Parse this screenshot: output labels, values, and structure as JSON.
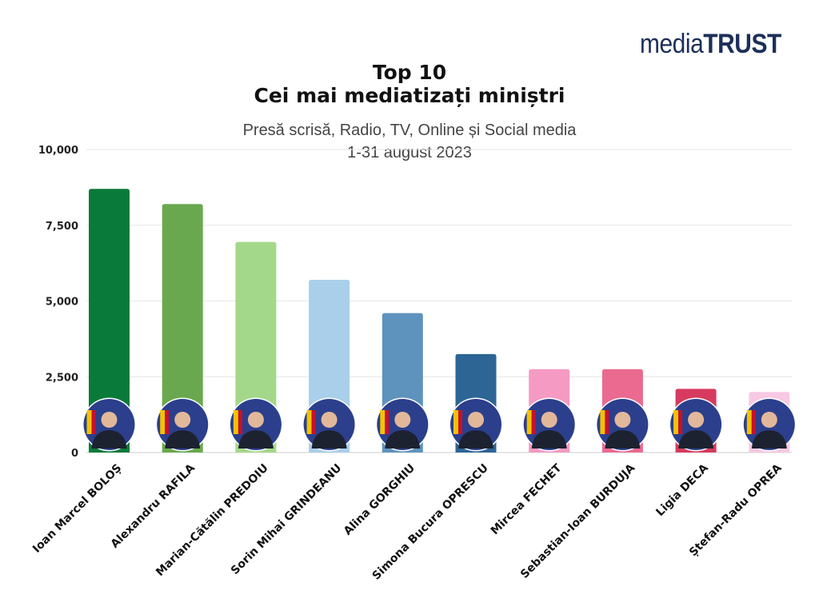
{
  "logo": {
    "part1": "media",
    "part2": "TRUST"
  },
  "chart_data": {
    "type": "bar",
    "title": "Top 10",
    "title_line2": "Cei mai mediatizați miniștri",
    "subtitle": "Presă scrisă, Radio, TV, Online și Social media",
    "subtitle_line2": "1-31 august 2023",
    "xlabel": "",
    "ylabel": "",
    "ylim": [
      0,
      10000
    ],
    "yticks": [
      0,
      2500,
      5000,
      7500,
      10000
    ],
    "ytick_labels": [
      "0",
      "2,500",
      "5,000",
      "7,500",
      "10,000"
    ],
    "grid": true,
    "legend": "none",
    "categories": [
      "Ioan Marcel BOLOȘ",
      "Alexandru RAFILA",
      "Marian-Cătălin PREDOIU",
      "Sorin Mihai GRINDEANU",
      "Alina GORGHIU",
      "Simona Bucura OPRESCU",
      "Mircea FECHET",
      "Sebastian-Ioan BURDUJA",
      "Ligia DECA",
      "Ștefan-Radu OPREA"
    ],
    "values": [
      8700,
      8200,
      6950,
      5700,
      4600,
      3250,
      2750,
      2750,
      2100,
      2000
    ],
    "colors": [
      "#0a7a3a",
      "#6aa84f",
      "#a3d88a",
      "#a9cfea",
      "#5e93bd",
      "#2d6595",
      "#f59ac2",
      "#ea6a90",
      "#d63a5e",
      "#f7c9e3"
    ]
  }
}
